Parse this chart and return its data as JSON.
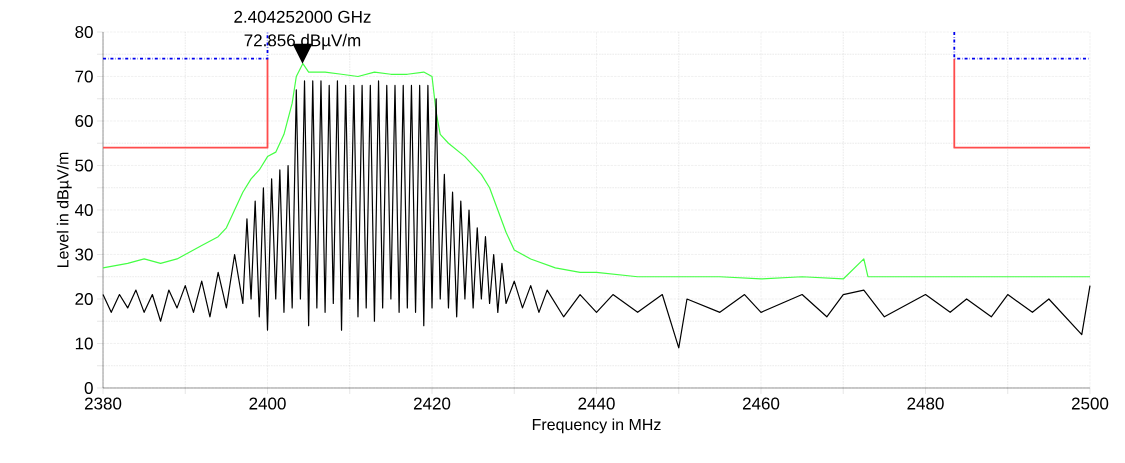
{
  "chart_data": {
    "type": "line",
    "xlabel": "Frequency in MHz",
    "ylabel": "Level in dBµV/m",
    "xlim": [
      2380,
      2500
    ],
    "ylim": [
      0,
      80
    ],
    "xticks": [
      2380,
      2400,
      2420,
      2440,
      2460,
      2480,
      2500
    ],
    "yticks": [
      0,
      10,
      20,
      30,
      40,
      50,
      60,
      70,
      80
    ],
    "grid": true,
    "series": [
      {
        "color": "#44ff44",
        "x": [
          2380,
          2383,
          2385,
          2387,
          2389,
          2390,
          2392,
          2394,
          2395,
          2396,
          2397,
          2398,
          2399,
          2400,
          2401,
          2402,
          2403,
          2403.5,
          2404.3,
          2405,
          2407,
          2409,
          2411,
          2413,
          2415,
          2417,
          2419,
          2420,
          2420.5,
          2421,
          2422,
          2424,
          2426,
          2427,
          2428,
          2429,
          2430,
          2432,
          2435,
          2438,
          2440,
          2445,
          2450,
          2455,
          2460,
          2465,
          2470,
          2472.5,
          2473,
          2480,
          2485,
          2490,
          2495,
          2500
        ],
        "values": [
          27,
          28,
          29,
          28,
          29,
          30,
          32,
          34,
          36,
          40,
          44,
          47,
          49,
          52,
          53,
          57,
          64,
          70,
          72.9,
          71,
          71,
          70.5,
          70,
          71,
          70.5,
          70.5,
          71,
          70,
          62,
          57,
          55,
          52,
          48,
          45,
          40,
          35,
          31,
          29,
          27,
          26,
          26,
          25,
          25,
          25,
          24.5,
          25,
          24.5,
          29,
          25,
          25,
          25,
          25,
          25,
          25
        ]
      },
      {
        "color": "#000000",
        "x": [
          2380,
          2381,
          2382,
          2383,
          2384,
          2385,
          2386,
          2387,
          2388,
          2389,
          2390,
          2391,
          2392,
          2393,
          2394,
          2395,
          2396,
          2397,
          2397.5,
          2398,
          2398.5,
          2399,
          2399.5,
          2400,
          2400.5,
          2401,
          2401.5,
          2402,
          2402.5,
          2403,
          2403.5,
          2404,
          2404.5,
          2405,
          2405.5,
          2406,
          2406.5,
          2407,
          2407.5,
          2408,
          2408.5,
          2409,
          2409.5,
          2410,
          2410.5,
          2411,
          2411.5,
          2412,
          2412.5,
          2413,
          2413.5,
          2414,
          2414.5,
          2415,
          2415.5,
          2416,
          2416.5,
          2417,
          2417.5,
          2418,
          2418.5,
          2419,
          2419.5,
          2420,
          2420.5,
          2421,
          2421.5,
          2422,
          2422.5,
          2423,
          2423.5,
          2424,
          2424.5,
          2425,
          2425.5,
          2426,
          2426.5,
          2427,
          2427.5,
          2428,
          2428.5,
          2429,
          2430,
          2431,
          2432,
          2433,
          2434,
          2436,
          2438,
          2440,
          2442,
          2445,
          2448,
          2450,
          2451,
          2455,
          2458,
          2460,
          2465,
          2468,
          2470,
          2472.5,
          2475,
          2480,
          2483,
          2485,
          2488,
          2490,
          2493,
          2495,
          2499,
          2500
        ],
        "values": [
          21,
          17,
          21,
          18,
          22,
          17,
          21,
          15,
          22,
          18,
          23,
          17,
          24,
          16,
          26,
          18,
          30,
          19,
          38,
          20,
          42,
          16,
          45,
          13,
          47,
          20,
          49,
          17,
          50,
          18,
          67,
          20,
          69,
          14,
          69,
          18,
          69,
          17,
          68,
          19,
          69,
          13,
          68,
          20,
          68,
          16,
          68,
          18,
          68,
          15,
          69,
          18,
          68,
          20,
          68,
          17,
          68,
          18,
          68,
          17,
          68,
          14,
          68,
          18,
          65,
          20,
          48,
          18,
          44,
          16,
          42,
          20,
          40,
          18,
          36,
          20,
          34,
          19,
          30,
          17,
          28,
          19,
          24,
          18,
          23,
          17,
          22,
          16,
          21,
          17,
          21,
          17,
          21,
          9,
          20,
          17,
          21,
          17,
          21,
          16,
          21,
          22,
          16,
          21,
          17,
          20,
          16,
          21,
          17,
          20,
          12,
          23
        ]
      },
      {
        "color": "#ff4c4c",
        "line_style": "solid",
        "x": [
          2380,
          2400,
          2400,
          2442,
          2483.5,
          2483.5,
          2500
        ],
        "values": [
          54,
          54,
          74,
          null,
          74,
          54,
          54
        ]
      },
      {
        "color": "#0000ee",
        "line_style": "dashed",
        "x": [
          2380,
          2400,
          2400,
          2442,
          2483.5,
          2483.5,
          2500
        ],
        "values": [
          74,
          74,
          80,
          null,
          80,
          74,
          74
        ]
      }
    ],
    "annotations": [
      {
        "text": "2.404252000 GHz",
        "x": 2404.252,
        "y": 72.856
      },
      {
        "text": "72.856 dBµV/m",
        "x": 2404.252,
        "y": 72.856
      }
    ]
  }
}
